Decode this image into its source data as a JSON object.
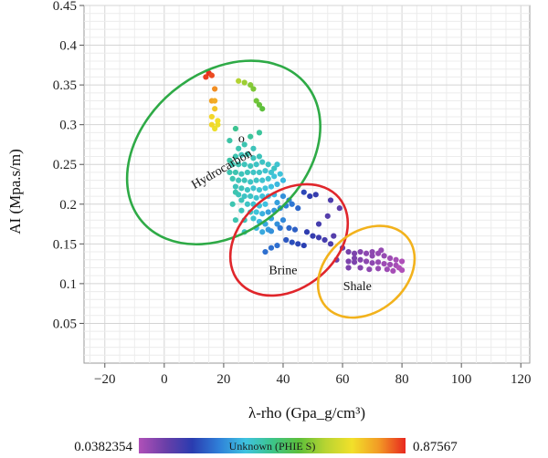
{
  "chart_data": {
    "type": "scatter",
    "xlabel": "λ-rho (Gpa_g/cm³)",
    "ylabel": "AI (Mpa.s/m)",
    "xlim": [
      -27,
      123
    ],
    "ylim": [
      0,
      0.45
    ],
    "xticks": [
      "−20",
      "0",
      "20",
      "40",
      "60",
      "80",
      "100",
      "120"
    ],
    "xtick_values": [
      -20,
      0,
      20,
      40,
      60,
      80,
      100,
      120
    ],
    "yticks": [
      "0.05",
      "0.1",
      "0.15",
      "0.2",
      "0.25",
      "0.3",
      "0.35",
      "0.4",
      "0.45"
    ],
    "ytick_values": [
      0.05,
      0.1,
      0.15,
      0.2,
      0.25,
      0.3,
      0.35,
      0.4,
      0.45
    ],
    "grid": true,
    "colorbar": {
      "min_label": "0.0382354",
      "max_label": "0.87567",
      "title": "Unknown (PHIE S)",
      "min": 0.0382354,
      "max": 0.87567,
      "colors": [
        "#b050b8",
        "#6a3fa8",
        "#2a3cb0",
        "#2f7fd8",
        "#3ec3e0",
        "#3cc48a",
        "#5cbf3a",
        "#b8d432",
        "#f2e02a",
        "#f29a25",
        "#e8281f"
      ]
    },
    "annotations": [
      {
        "text": "Hydrocarbon",
        "color": "#2eaa46",
        "cx": 20,
        "cy": 0.265,
        "rx": 36,
        "ry": 0.1,
        "angle": 40
      },
      {
        "text": "Brine",
        "color": "#e0262b",
        "cx": 42,
        "cy": 0.155,
        "rx": 22,
        "ry": 0.06,
        "angle": 40
      },
      {
        "text": "Shale",
        "color": "#f2b21c",
        "cx": 68,
        "cy": 0.115,
        "rx": 18,
        "ry": 0.05,
        "angle": 40
      }
    ],
    "text_marks": [
      {
        "text": "o",
        "x": 26,
        "y": 0.278
      }
    ],
    "points": [
      [
        14,
        0.36,
        0.86
      ],
      [
        15,
        0.365,
        0.87
      ],
      [
        16,
        0.362,
        0.85
      ],
      [
        17,
        0.345,
        0.8
      ],
      [
        16,
        0.33,
        0.78
      ],
      [
        17,
        0.33,
        0.77
      ],
      [
        17,
        0.32,
        0.74
      ],
      [
        16,
        0.31,
        0.72
      ],
      [
        18,
        0.305,
        0.71
      ],
      [
        17,
        0.295,
        0.7
      ],
      [
        16,
        0.3,
        0.72
      ],
      [
        18,
        0.3,
        0.7
      ],
      [
        25,
        0.355,
        0.62
      ],
      [
        27,
        0.353,
        0.6
      ],
      [
        29,
        0.35,
        0.58
      ],
      [
        30,
        0.345,
        0.57
      ],
      [
        31,
        0.33,
        0.56
      ],
      [
        32,
        0.325,
        0.55
      ],
      [
        33,
        0.32,
        0.54
      ],
      [
        24,
        0.295,
        0.45
      ],
      [
        29,
        0.285,
        0.44
      ],
      [
        32,
        0.29,
        0.44
      ],
      [
        22,
        0.28,
        0.43
      ],
      [
        25,
        0.27,
        0.42
      ],
      [
        27,
        0.275,
        0.42
      ],
      [
        30,
        0.27,
        0.41
      ],
      [
        24,
        0.26,
        0.42
      ],
      [
        26,
        0.262,
        0.41
      ],
      [
        28,
        0.263,
        0.42
      ],
      [
        30,
        0.258,
        0.41
      ],
      [
        32,
        0.26,
        0.41
      ],
      [
        22,
        0.255,
        0.43
      ],
      [
        23,
        0.25,
        0.42
      ],
      [
        25,
        0.25,
        0.42
      ],
      [
        27,
        0.25,
        0.41
      ],
      [
        29,
        0.248,
        0.41
      ],
      [
        31,
        0.25,
        0.4
      ],
      [
        33,
        0.253,
        0.4
      ],
      [
        35,
        0.25,
        0.4
      ],
      [
        37,
        0.245,
        0.4
      ],
      [
        38,
        0.25,
        0.39
      ],
      [
        22,
        0.24,
        0.42
      ],
      [
        24,
        0.24,
        0.42
      ],
      [
        26,
        0.238,
        0.41
      ],
      [
        28,
        0.24,
        0.41
      ],
      [
        30,
        0.24,
        0.4
      ],
      [
        32,
        0.24,
        0.4
      ],
      [
        34,
        0.242,
        0.39
      ],
      [
        36,
        0.24,
        0.39
      ],
      [
        23,
        0.232,
        0.42
      ],
      [
        25,
        0.23,
        0.41
      ],
      [
        27,
        0.23,
        0.41
      ],
      [
        29,
        0.228,
        0.4
      ],
      [
        31,
        0.23,
        0.4
      ],
      [
        33,
        0.23,
        0.39
      ],
      [
        35,
        0.232,
        0.39
      ],
      [
        37,
        0.235,
        0.38
      ],
      [
        39,
        0.238,
        0.38
      ],
      [
        24,
        0.222,
        0.41
      ],
      [
        26,
        0.22,
        0.41
      ],
      [
        28,
        0.218,
        0.4
      ],
      [
        30,
        0.22,
        0.39
      ],
      [
        32,
        0.218,
        0.39
      ],
      [
        34,
        0.22,
        0.38
      ],
      [
        36,
        0.222,
        0.37
      ],
      [
        38,
        0.225,
        0.36
      ],
      [
        40,
        0.23,
        0.36
      ],
      [
        25,
        0.212,
        0.41
      ],
      [
        27,
        0.21,
        0.4
      ],
      [
        29,
        0.21,
        0.4
      ],
      [
        31,
        0.208,
        0.39
      ],
      [
        33,
        0.21,
        0.38
      ],
      [
        35,
        0.21,
        0.37
      ],
      [
        37,
        0.212,
        0.36
      ],
      [
        28,
        0.2,
        0.4
      ],
      [
        30,
        0.2,
        0.39
      ],
      [
        32,
        0.198,
        0.38
      ],
      [
        34,
        0.2,
        0.37
      ],
      [
        26,
        0.192,
        0.41
      ],
      [
        29,
        0.19,
        0.4
      ],
      [
        31,
        0.19,
        0.38
      ],
      [
        24,
        0.18,
        0.42
      ],
      [
        27,
        0.18,
        0.41
      ],
      [
        30,
        0.182,
        0.39
      ],
      [
        33,
        0.188,
        0.35
      ],
      [
        35,
        0.19,
        0.33
      ],
      [
        37,
        0.192,
        0.32
      ],
      [
        24,
        0.215,
        0.42
      ],
      [
        26,
        0.205,
        0.41
      ],
      [
        23,
        0.2,
        0.42
      ],
      [
        38,
        0.202,
        0.33
      ],
      [
        40,
        0.21,
        0.31
      ],
      [
        42,
        0.205,
        0.3
      ],
      [
        36,
        0.182,
        0.33
      ],
      [
        38,
        0.175,
        0.31
      ],
      [
        40,
        0.18,
        0.3
      ],
      [
        32,
        0.178,
        0.36
      ],
      [
        34,
        0.175,
        0.34
      ],
      [
        33,
        0.165,
        0.34
      ],
      [
        35,
        0.168,
        0.32
      ],
      [
        31,
        0.17,
        0.36
      ],
      [
        36,
        0.166,
        0.31
      ],
      [
        27,
        0.165,
        0.4
      ],
      [
        39,
        0.195,
        0.31
      ],
      [
        41,
        0.198,
        0.29
      ],
      [
        43,
        0.2,
        0.28
      ],
      [
        45,
        0.195,
        0.26
      ],
      [
        39,
        0.17,
        0.28
      ],
      [
        42,
        0.17,
        0.26
      ],
      [
        44,
        0.168,
        0.25
      ],
      [
        41,
        0.155,
        0.24
      ],
      [
        43,
        0.152,
        0.23
      ],
      [
        45,
        0.15,
        0.22
      ],
      [
        47,
        0.148,
        0.21
      ],
      [
        38,
        0.148,
        0.27
      ],
      [
        36,
        0.145,
        0.27
      ],
      [
        34,
        0.14,
        0.27
      ],
      [
        48,
        0.165,
        0.2
      ],
      [
        50,
        0.16,
        0.19
      ],
      [
        52,
        0.158,
        0.18
      ],
      [
        54,
        0.155,
        0.17
      ],
      [
        56,
        0.15,
        0.16
      ],
      [
        47,
        0.215,
        0.22
      ],
      [
        49,
        0.21,
        0.2
      ],
      [
        51,
        0.212,
        0.19
      ],
      [
        56,
        0.205,
        0.16
      ],
      [
        59,
        0.195,
        0.14
      ],
      [
        55,
        0.185,
        0.15
      ],
      [
        52,
        0.175,
        0.17
      ],
      [
        57,
        0.16,
        0.15
      ],
      [
        60,
        0.145,
        0.12
      ],
      [
        62,
        0.14,
        0.11
      ],
      [
        64,
        0.138,
        0.1
      ],
      [
        66,
        0.14,
        0.09
      ],
      [
        68,
        0.138,
        0.08
      ],
      [
        70,
        0.135,
        0.08
      ],
      [
        72,
        0.138,
        0.07
      ],
      [
        74,
        0.135,
        0.07
      ],
      [
        76,
        0.132,
        0.06
      ],
      [
        78,
        0.13,
        0.05
      ],
      [
        80,
        0.128,
        0.04
      ],
      [
        62,
        0.128,
        0.1
      ],
      [
        64,
        0.127,
        0.1
      ],
      [
        66,
        0.13,
        0.09
      ],
      [
        68,
        0.128,
        0.08
      ],
      [
        70,
        0.126,
        0.08
      ],
      [
        72,
        0.127,
        0.07
      ],
      [
        74,
        0.125,
        0.06
      ],
      [
        76,
        0.124,
        0.06
      ],
      [
        78,
        0.123,
        0.05
      ],
      [
        79,
        0.12,
        0.04
      ],
      [
        66,
        0.12,
        0.09
      ],
      [
        69,
        0.118,
        0.08
      ],
      [
        72,
        0.119,
        0.07
      ],
      [
        75,
        0.118,
        0.06
      ],
      [
        77,
        0.116,
        0.05
      ],
      [
        80,
        0.117,
        0.04
      ],
      [
        62,
        0.12,
        0.1
      ],
      [
        58,
        0.13,
        0.12
      ],
      [
        70,
        0.14,
        0.08
      ],
      [
        73,
        0.142,
        0.07
      ],
      [
        64,
        0.132,
        0.1
      ]
    ]
  }
}
